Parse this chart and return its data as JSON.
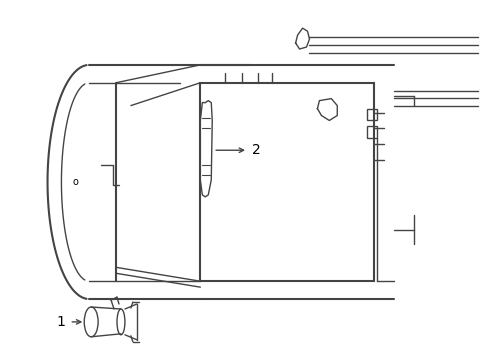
{
  "bg_color": "#ffffff",
  "line_color": "#444444",
  "label_color": "#000000",
  "fig_width": 4.89,
  "fig_height": 3.6,
  "dpi": 100,
  "label1": "1",
  "label2": "2",
  "label_o": "o"
}
